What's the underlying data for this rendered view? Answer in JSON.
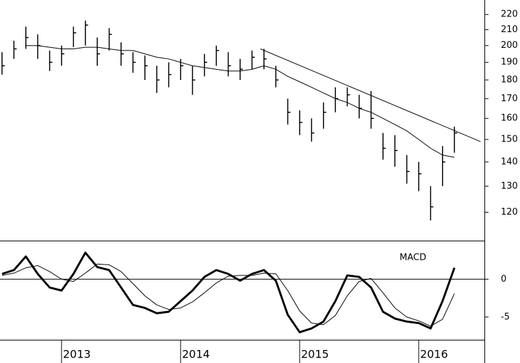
{
  "chart_data": [
    {
      "type": "ohlc",
      "log_scale": true,
      "x": [
        2012.5,
        2012.6,
        2012.7,
        2012.8,
        2012.9,
        2013.0,
        2013.1,
        2013.2,
        2013.3,
        2013.4,
        2013.5,
        2013.6,
        2013.7,
        2013.8,
        2013.9,
        2014.0,
        2014.1,
        2014.2,
        2014.3,
        2014.4,
        2014.5,
        2014.6,
        2014.7,
        2014.8,
        2014.9,
        2015.0,
        2015.1,
        2015.2,
        2015.3,
        2015.4,
        2015.5,
        2015.6,
        2015.7,
        2015.8,
        2015.9,
        2016.0,
        2016.1,
        2016.2,
        2016.3
      ],
      "high": [
        196,
        203,
        212,
        207,
        197,
        200,
        212,
        216,
        205,
        211,
        202,
        196,
        194,
        188,
        190,
        192,
        188,
        195,
        200,
        196,
        192,
        197,
        198,
        188,
        170,
        164,
        160,
        168,
        176,
        176,
        172,
        174,
        153,
        152,
        143,
        140,
        130,
        147,
        156
      ],
      "low": [
        183,
        192,
        198,
        192,
        185,
        188,
        199,
        200,
        188,
        197,
        188,
        184,
        180,
        173,
        176,
        180,
        172,
        182,
        188,
        182,
        180,
        186,
        186,
        176,
        157,
        152,
        149,
        155,
        163,
        166,
        160,
        155,
        141,
        138,
        131,
        128,
        117,
        130,
        144
      ],
      "close": [
        188,
        198,
        205,
        200,
        190,
        195,
        208,
        213,
        195,
        207,
        195,
        190,
        188,
        180,
        183,
        188,
        180,
        190,
        197,
        188,
        186,
        193,
        192,
        180,
        163,
        158,
        153,
        163,
        170,
        172,
        165,
        160,
        146,
        145,
        136,
        135,
        122,
        140,
        153
      ],
      "ma": [
        null,
        null,
        200,
        200,
        199,
        198,
        198,
        199,
        199,
        198,
        197,
        197,
        195,
        193,
        192,
        190,
        188,
        187,
        186,
        185,
        185,
        186,
        188,
        186,
        182,
        179,
        176,
        173,
        170,
        168,
        165,
        163,
        160,
        157,
        154,
        150,
        146,
        143,
        142
      ],
      "color": "#000000",
      "trendline": {
        "x": [
          2014.67,
          2016.52
        ],
        "y": [
          198,
          149
        ]
      },
      "xlim": [
        2012.483,
        2016.552
      ],
      "ylim": [
        110,
        230
      ],
      "yticks": [
        120,
        130,
        140,
        150,
        160,
        170,
        180,
        190,
        200,
        210,
        220
      ]
    },
    {
      "type": "line",
      "title": "MACD",
      "x": [
        2012.5,
        2012.6,
        2012.7,
        2012.8,
        2012.9,
        2013.0,
        2013.1,
        2013.2,
        2013.3,
        2013.4,
        2013.5,
        2013.6,
        2013.7,
        2013.8,
        2013.9,
        2014.0,
        2014.1,
        2014.2,
        2014.3,
        2014.4,
        2014.5,
        2014.6,
        2014.7,
        2014.8,
        2014.9,
        2015.0,
        2015.1,
        2015.2,
        2015.3,
        2015.4,
        2015.5,
        2015.6,
        2015.7,
        2015.8,
        2015.9,
        2016.0,
        2016.1,
        2016.2,
        2016.3
      ],
      "series": [
        {
          "color": "#000000",
          "width": 3,
          "values": [
            0.7,
            1.2,
            3,
            0.7,
            -1.1,
            -1.5,
            0.7,
            3.5,
            1.6,
            1.2,
            -1.1,
            -3.4,
            -3.8,
            -4.5,
            -4.3,
            -2.9,
            -1.5,
            0.3,
            1.2,
            0.7,
            -0.2,
            0.7,
            1.2,
            -0.2,
            -4.7,
            -7,
            -6.5,
            -5.6,
            -2.9,
            0.5,
            0.3,
            -1.1,
            -4.3,
            -5.2,
            -5.6,
            -5.8,
            -6.5,
            -2.9,
            1.5
          ]
        },
        {
          "color": "#000000",
          "width": 1,
          "values": [
            0.5,
            0.8,
            1.5,
            1.8,
            1,
            0,
            -0.3,
            0.8,
            2,
            1.9,
            1,
            -0.6,
            -2.2,
            -3.4,
            -4,
            -3.8,
            -3,
            -1.8,
            -0.5,
            0.4,
            0.5,
            0.5,
            0.8,
            0.7,
            -1.5,
            -4.2,
            -5.8,
            -6,
            -4.8,
            -2.2,
            -0.3,
            0.1,
            -1.8,
            -3.8,
            -5,
            -5.5,
            -6.2,
            -5.3,
            -1.9
          ]
        }
      ],
      "zero_line": true,
      "xlim": [
        2012.483,
        2016.552
      ],
      "ylim": [
        -8,
        5
      ],
      "yticks": [
        -5,
        0
      ],
      "xticks": [
        2013,
        2014,
        2015,
        2016
      ]
    }
  ]
}
